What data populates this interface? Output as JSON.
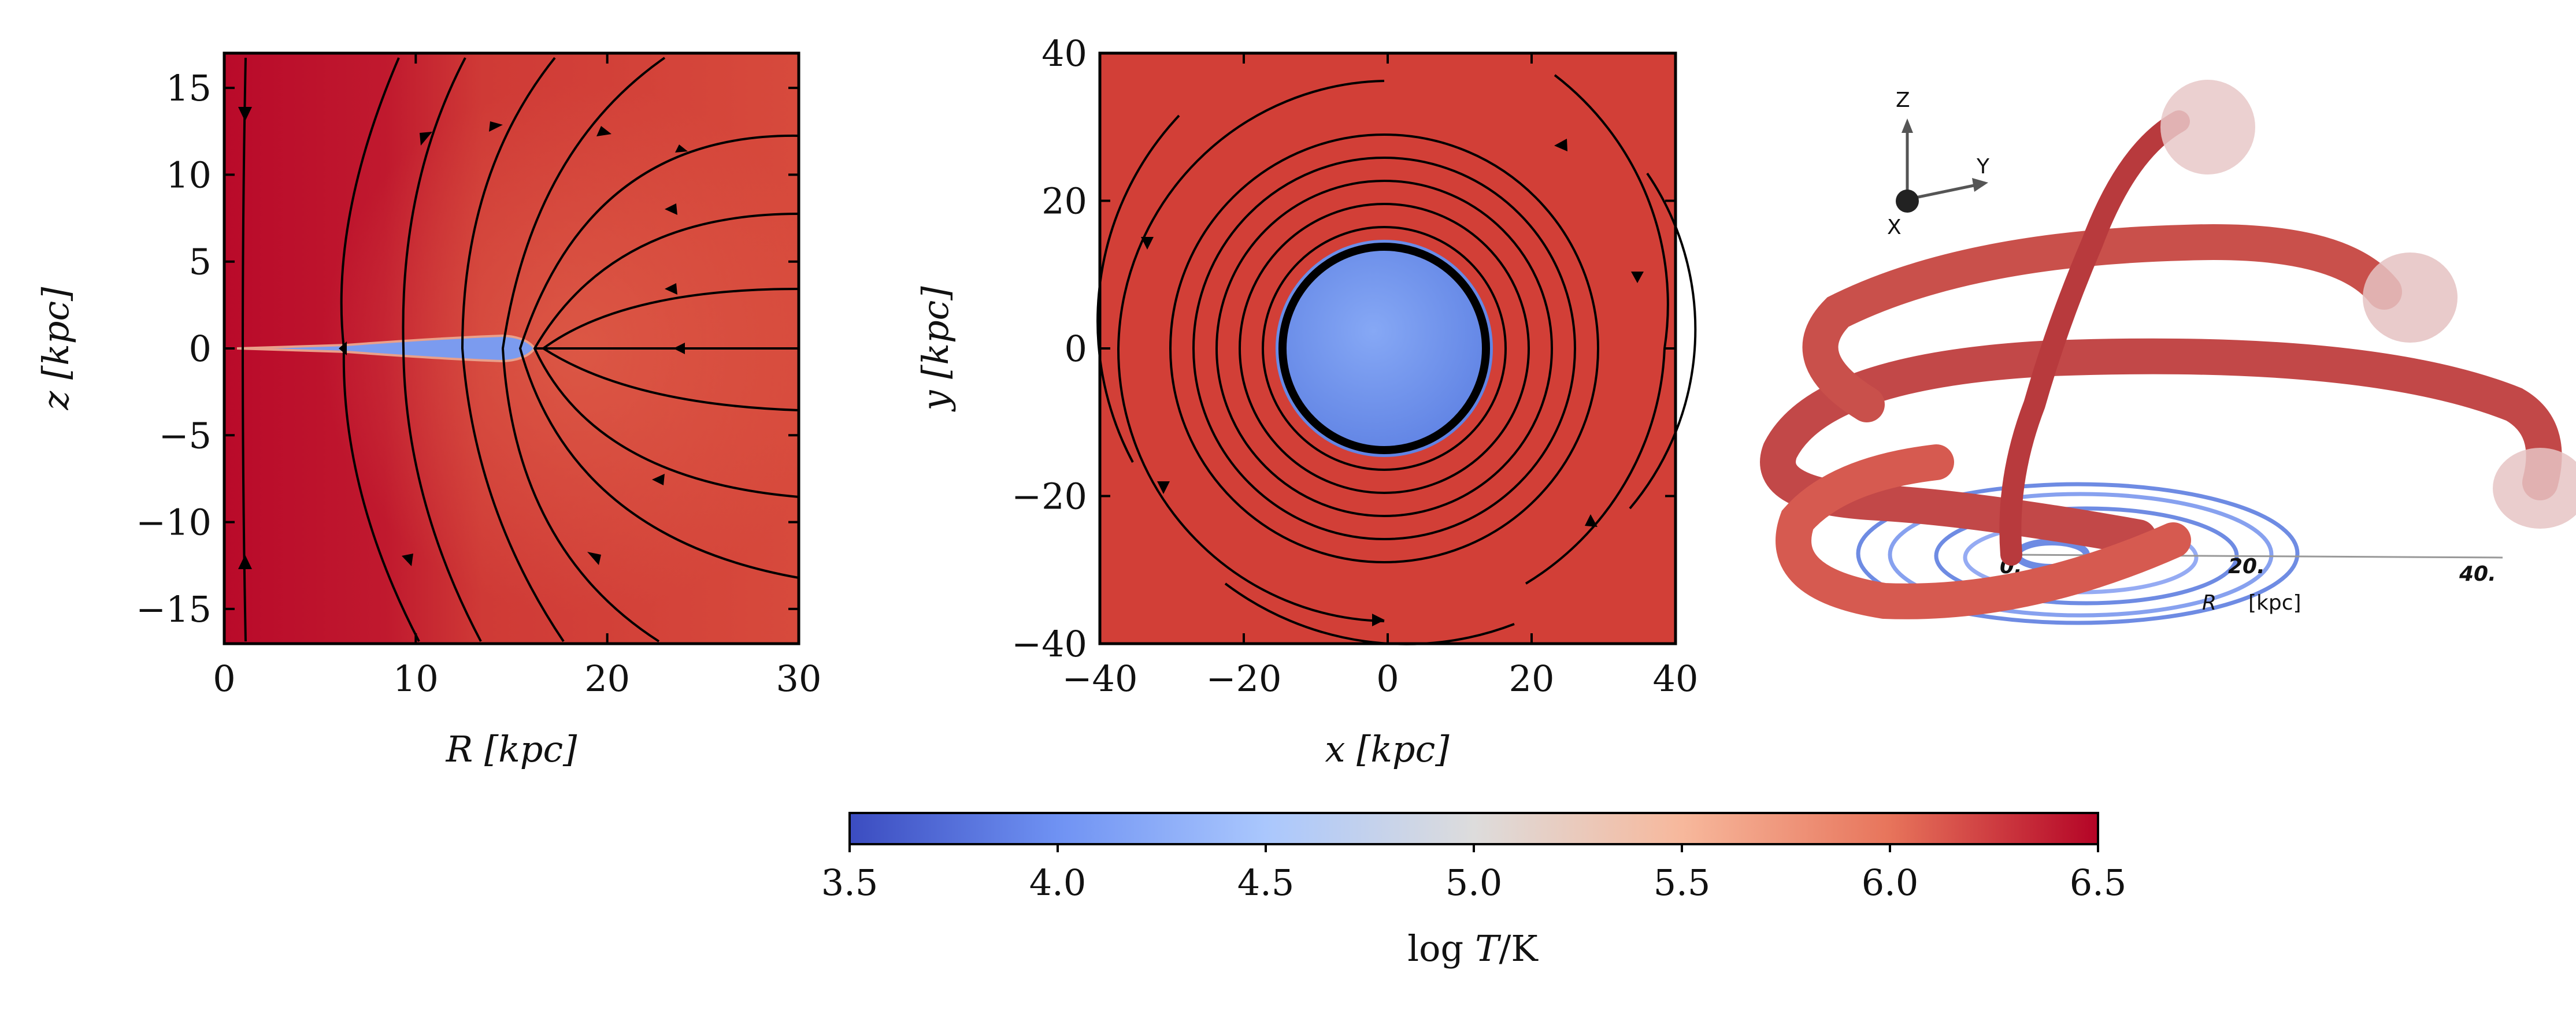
{
  "chart_data": [
    {
      "type": "heatmap",
      "title": "",
      "xlabel": "R [kpc]",
      "ylabel": "z [kpc]",
      "xlim": [
        0,
        30
      ],
      "ylim": [
        -17,
        17
      ],
      "xticks": [
        0,
        10,
        20,
        30
      ],
      "yticks": [
        15,
        10,
        5,
        0,
        -5,
        -10,
        -15
      ],
      "xtick_labels": [
        "0",
        "10",
        "20",
        "30"
      ],
      "ytick_labels": [
        "15",
        "10",
        "5",
        "0",
        "−5",
        "−10",
        "−15"
      ],
      "background_logT": 6.3,
      "disk": {
        "r_max_kpc": 16,
        "logT": 4.2
      }
    },
    {
      "type": "heatmap",
      "title": "",
      "xlabel": "x [kpc]",
      "ylabel": "y [kpc]",
      "xlim": [
        -40,
        40
      ],
      "ylim": [
        -40,
        40
      ],
      "xticks": [
        -40,
        -20,
        0,
        20,
        40
      ],
      "yticks": [
        40,
        20,
        0,
        -20,
        -40
      ],
      "xtick_labels": [
        "−40",
        "−20",
        "0",
        "20",
        "40"
      ],
      "ytick_labels": [
        "40",
        "20",
        "0",
        "−20",
        "−40"
      ],
      "background_logT": 6.1,
      "disk": {
        "radius_kpc": 14,
        "logT": 4.2
      }
    },
    {
      "type": "diagram3d",
      "axis_labels": {
        "z": "Z",
        "y": "Y",
        "x": "X"
      },
      "r_ticks": [
        "0.",
        "20.",
        "40."
      ],
      "r_label": "R",
      "r_unit": "[kpc]"
    }
  ],
  "colorbar": {
    "label_prefix": "log",
    "label_var": "T",
    "label_suffix": "/K",
    "min": 3.5,
    "max": 6.5,
    "ticks": [
      3.5,
      4.0,
      4.5,
      5.0,
      5.5,
      6.0,
      6.5
    ],
    "tick_labels": [
      "3.5",
      "4.0",
      "4.5",
      "5.0",
      "5.5",
      "6.0",
      "6.5"
    ],
    "colors": [
      "#3b4cc0",
      "#6f92f3",
      "#aac7fd",
      "#dddcdc",
      "#f7b89c",
      "#e7745b",
      "#b40426"
    ]
  }
}
